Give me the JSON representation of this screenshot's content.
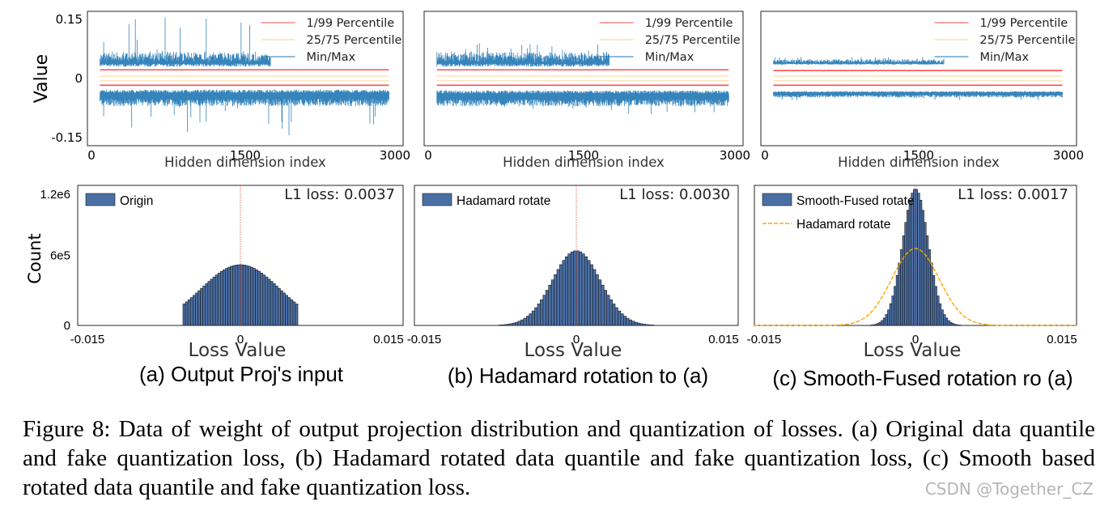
{
  "chart_data": [
    {
      "id": "a-top",
      "type": "line",
      "ylabel": "Value",
      "xlabel": "Hidden dimension index",
      "xlim": [
        0,
        3000
      ],
      "ylim": [
        -0.17,
        0.17
      ],
      "x_ticks": [
        "0",
        "1500",
        "3000"
      ],
      "y_ticks": [
        {
          "v": 0.15,
          "label": "0.15"
        },
        {
          "v": 0,
          "label": "0"
        },
        {
          "v": -0.15,
          "label": "-0.15"
        }
      ],
      "legend": [
        "1/99 Percentile",
        "25/75 Percentile",
        "Min/Max"
      ],
      "legend_position": "top-right",
      "series": [
        {
          "name": "1/99 Percentile",
          "color": "#ff4d4d",
          "values": [
            0.022,
            -0.017
          ]
        },
        {
          "name": "25/75 Percentile",
          "color": "#f2d69c",
          "values": [
            0.006,
            -0.006
          ]
        },
        {
          "name": "Min/Max",
          "color": "#1f77b4",
          "max_band": [
            0.03,
            0.07
          ],
          "min_band": [
            -0.028,
            -0.07
          ],
          "max_peak": 0.16,
          "min_peak": -0.16
        }
      ]
    },
    {
      "id": "b-top",
      "type": "line",
      "ylabel": "",
      "xlabel": "Hidden dimension index",
      "xlim": [
        0,
        3000
      ],
      "ylim": [
        -0.17,
        0.17
      ],
      "x_ticks": [
        "0",
        "1500",
        "3000"
      ],
      "y_ticks": [],
      "legend": [
        "1/99 Percentile",
        "25/75 Percentile",
        "Min/Max"
      ],
      "legend_position": "top-right",
      "series": [
        {
          "name": "1/99 Percentile",
          "color": "#ff4d4d",
          "values": [
            0.022,
            -0.017
          ]
        },
        {
          "name": "25/75 Percentile",
          "color": "#f2d69c",
          "values": [
            0.006,
            -0.006
          ]
        },
        {
          "name": "Min/Max",
          "color": "#1f77b4",
          "max_band": [
            0.03,
            0.07
          ],
          "min_band": [
            -0.03,
            -0.07
          ],
          "max_peak": 0.09,
          "min_peak": -0.09
        }
      ]
    },
    {
      "id": "c-top",
      "type": "line",
      "ylabel": "",
      "xlabel": "Hidden dimension index",
      "xlim": [
        0,
        3000
      ],
      "ylim": [
        -0.17,
        0.17
      ],
      "x_ticks": [
        "0",
        "1500",
        "3000"
      ],
      "y_ticks": [],
      "legend": [
        "1/99 Percentile",
        "25/75 Percentile",
        "Min/Max"
      ],
      "legend_position": "top-right",
      "series": [
        {
          "name": "1/99 Percentile",
          "color": "#ff4d4d",
          "values": [
            0.02,
            -0.017
          ]
        },
        {
          "name": "25/75 Percentile",
          "color": "#f2d69c",
          "values": [
            0.006,
            -0.006
          ]
        },
        {
          "name": "Min/Max",
          "color": "#1f77b4",
          "max_band": [
            0.035,
            0.05
          ],
          "min_band": [
            -0.032,
            -0.048
          ],
          "max_peak": 0.055,
          "min_peak": -0.055
        }
      ]
    },
    {
      "id": "a-bottom",
      "type": "bar",
      "ylabel": "Count",
      "xlabel": "Loss Value",
      "xlim": [
        -0.015,
        0.015
      ],
      "ylim": [
        0,
        1200000
      ],
      "x_ticks": [
        "-0.015",
        "0",
        "0.015"
      ],
      "y_ticks": [
        {
          "v": 1200000,
          "label": "1.2e6"
        },
        {
          "v": 600000,
          "label": "6e5"
        },
        {
          "v": 0,
          "label": "0"
        }
      ],
      "legend": [
        "Origin"
      ],
      "legend_position": "top-left",
      "annotation": "L1 loss: 0.0037",
      "bar_color": "#4a6fa5",
      "histogram": {
        "peak": 520000,
        "sigma": 0.0036,
        "range": [
          -0.0053,
          0.0053
        ],
        "bins": 46
      }
    },
    {
      "id": "b-bottom",
      "type": "bar",
      "ylabel": "",
      "xlabel": "Loss Value",
      "xlim": [
        -0.015,
        0.015
      ],
      "ylim": [
        0,
        1200000
      ],
      "x_ticks": [
        "-0.015",
        "0",
        "0.015"
      ],
      "y_ticks": [],
      "legend": [
        "Hadamard rotate"
      ],
      "legend_position": "top-left",
      "annotation": "L1 loss: 0.0030",
      "bar_color": "#4a6fa5",
      "histogram": {
        "peak": 640000,
        "sigma": 0.0022,
        "range": [
          -0.0072,
          0.0072
        ],
        "bins": 56
      }
    },
    {
      "id": "c-bottom",
      "type": "bar",
      "ylabel": "",
      "xlabel": "Loss Value",
      "xlim": [
        -0.015,
        0.015
      ],
      "ylim": [
        0,
        1200000
      ],
      "x_ticks": [
        "-0.015",
        "0",
        "0.015"
      ],
      "y_ticks": [],
      "legend": [
        "Smooth-Fused rotate",
        "Hadamard rotate"
      ],
      "legend_position": "top-left",
      "annotation": "L1 loss: 0.0017",
      "bar_color": "#4a6fa5",
      "histogram": {
        "peak": 1170000,
        "sigma": 0.0012,
        "range": [
          -0.0042,
          0.0042
        ],
        "bins": 42
      },
      "overlay": {
        "name": "Hadamard rotate",
        "color": "#ffa500",
        "peak": 660000,
        "sigma": 0.0022
      }
    }
  ],
  "subcaptions": [
    "(a) Output Proj's input",
    "(b) Hadamard rotation to (a)",
    "(c) Smooth-Fused rotation ro (a)"
  ],
  "caption": "Figure 8: Data of weight of output projection distribution and quantization of losses. (a) Original data quantile and fake quantization loss, (b) Hadamard rotated data quantile and fake quantization loss, (c) Smooth based rotated data quantile and fake quantization loss.",
  "watermark": "CSDN @Together_CZ"
}
